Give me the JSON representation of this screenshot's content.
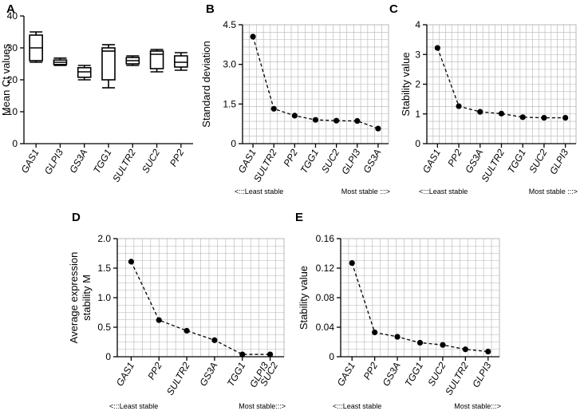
{
  "chart_data": [
    {
      "id": "A",
      "panel_label": "A",
      "type": "box",
      "ylabel": "Mean Ct values",
      "ylim": [
        0,
        40
      ],
      "yticks": [
        0,
        10,
        20,
        30,
        40
      ],
      "categories": [
        "GAS1",
        "GLPI3",
        "GS3A",
        "TGG1",
        "SULTR2",
        "SUC2",
        "PP2"
      ],
      "boxes": [
        {
          "min": 25.5,
          "q1": 26.0,
          "median": 30.0,
          "q3": 34.0,
          "max": 35.0
        },
        {
          "min": 24.5,
          "q1": 24.8,
          "median": 25.5,
          "q3": 26.2,
          "max": 26.8
        },
        {
          "min": 20.0,
          "q1": 20.8,
          "median": 22.5,
          "q3": 23.8,
          "max": 24.5
        },
        {
          "min": 17.5,
          "q1": 20.0,
          "median": 29.0,
          "q3": 30.0,
          "max": 31.0
        },
        {
          "min": 24.5,
          "q1": 25.0,
          "median": 26.0,
          "q3": 27.0,
          "max": 27.5
        },
        {
          "min": 22.5,
          "q1": 23.5,
          "median": 28.0,
          "q3": 29.0,
          "max": 29.5
        },
        {
          "min": 23.0,
          "q1": 24.0,
          "median": 25.5,
          "q3": 27.5,
          "max": 28.5
        }
      ]
    },
    {
      "id": "B",
      "panel_label": "B",
      "type": "line",
      "ylabel": "Standard  deviation",
      "ylim": [
        0,
        4.5
      ],
      "yticks": [
        0,
        1.5,
        3.0,
        4.5
      ],
      "categories": [
        "GAS1",
        "SULTR2",
        "PP2",
        "TGG1",
        "SUC2",
        "GLPI3",
        "GS3A"
      ],
      "values": [
        4.05,
        1.32,
        1.06,
        0.9,
        0.87,
        0.86,
        0.57
      ],
      "note_left": "<:::Least stable",
      "note_right": "Most stable :::>"
    },
    {
      "id": "C",
      "panel_label": "C",
      "type": "line",
      "ylabel": "Stability value",
      "ylim": [
        0,
        4
      ],
      "yticks": [
        0,
        1,
        2,
        3,
        4
      ],
      "categories": [
        "GAS1",
        "PP2",
        "GS3A",
        "SULTR2",
        "TGG1",
        "SUC2",
        "GLPI3"
      ],
      "values": [
        3.22,
        1.26,
        1.07,
        1.01,
        0.89,
        0.87,
        0.87
      ],
      "note_left": "<:::Least stable",
      "note_right": "Most stable  :::>"
    },
    {
      "id": "D",
      "panel_label": "D",
      "type": "line",
      "ylabel": "Average expression stability M",
      "ylabel_lines": [
        "Average expression",
        "stability M"
      ],
      "ylim": [
        0,
        2
      ],
      "yticks": [
        0,
        0.5,
        1.0,
        1.5,
        2.0
      ],
      "categories": [
        "GAS1",
        "PP2",
        "SULTR2",
        "GS3A",
        "TGG1",
        "GLPI3 SUC2"
      ],
      "category_lines": [
        [
          "GAS1"
        ],
        [
          "PP2"
        ],
        [
          "SULTR2"
        ],
        [
          "GS3A"
        ],
        [
          "TGG1"
        ],
        [
          "GLPI3",
          "SUC2"
        ]
      ],
      "values": [
        1.61,
        0.62,
        0.44,
        0.28,
        0.04,
        0.04
      ],
      "note_left": "<:::Least stable",
      "note_right": "Most stable:::>"
    },
    {
      "id": "E",
      "panel_label": "E",
      "type": "line",
      "ylabel": "Stability value",
      "ylim": [
        0,
        0.16
      ],
      "yticks": [
        0,
        0.04,
        0.08,
        0.12,
        0.16
      ],
      "categories": [
        "GAS1",
        "PP2",
        "GS3A",
        "TGG1",
        "SUC2",
        "SULTR2",
        "GLPI3"
      ],
      "values": [
        0.127,
        0.033,
        0.027,
        0.019,
        0.016,
        0.01,
        0.007
      ],
      "note_left": "<:::Least stable",
      "note_right": "Most stable:::>"
    }
  ]
}
